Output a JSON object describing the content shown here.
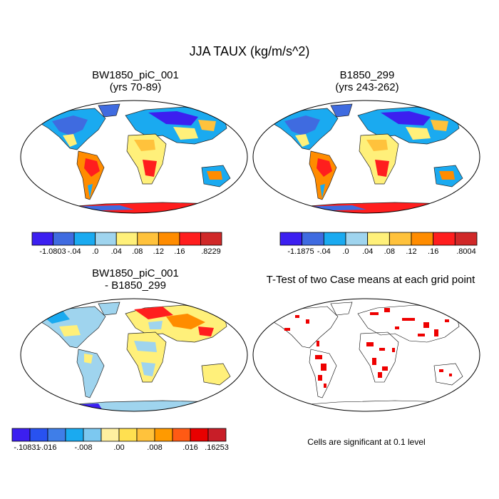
{
  "title": "JJA TAUX (kg/m/s^2)",
  "panels": {
    "top_left": {
      "title_line1": "BW1850_piC_001",
      "title_line2": "(yrs 70-89)",
      "colorbar": {
        "colors": [
          "#3c1ff0",
          "#3f6be0",
          "#1aaaf0",
          "#9fd4ee",
          "#fff07a",
          "#ffc23c",
          "#ff8c00",
          "#ff1e1e",
          "#d02828"
        ],
        "labels": [
          "-1.0803",
          "-.04",
          ".0",
          ".04",
          ".08",
          ".12",
          ".16",
          ".8229"
        ]
      }
    },
    "top_right": {
      "title_line1": "B1850_299",
      "title_line2": "(yrs 243-262)",
      "colorbar": {
        "colors": [
          "#3c1ff0",
          "#3f6be0",
          "#1aaaf0",
          "#9fd4ee",
          "#fff07a",
          "#ffc23c",
          "#ff8c00",
          "#ff1e1e",
          "#d02828"
        ],
        "labels": [
          "-1.1875",
          "-.04",
          ".0",
          ".04",
          ".08",
          ".12",
          ".16",
          ".8004"
        ]
      }
    },
    "bottom_left": {
      "title_line1": "BW1850_piC_001",
      "title_line2": "- B1850_299",
      "colorbar": {
        "colors": [
          "#3c1ff0",
          "#2852f0",
          "#3f7ee8",
          "#1aaaf0",
          "#7cc8f0",
          "#fff0a0",
          "#ffe050",
          "#ffc23c",
          "#ff9a00",
          "#ff5a14",
          "#e80000",
          "#c81e28"
        ],
        "labels": [
          "-.10831",
          "-.016",
          "-.008",
          ".00",
          ".008",
          ".016",
          ".16253"
        ]
      }
    },
    "bottom_right": {
      "title": "T-Test of two Case means at each grid point",
      "note": "Cells are significant at 0.1 level"
    }
  }
}
